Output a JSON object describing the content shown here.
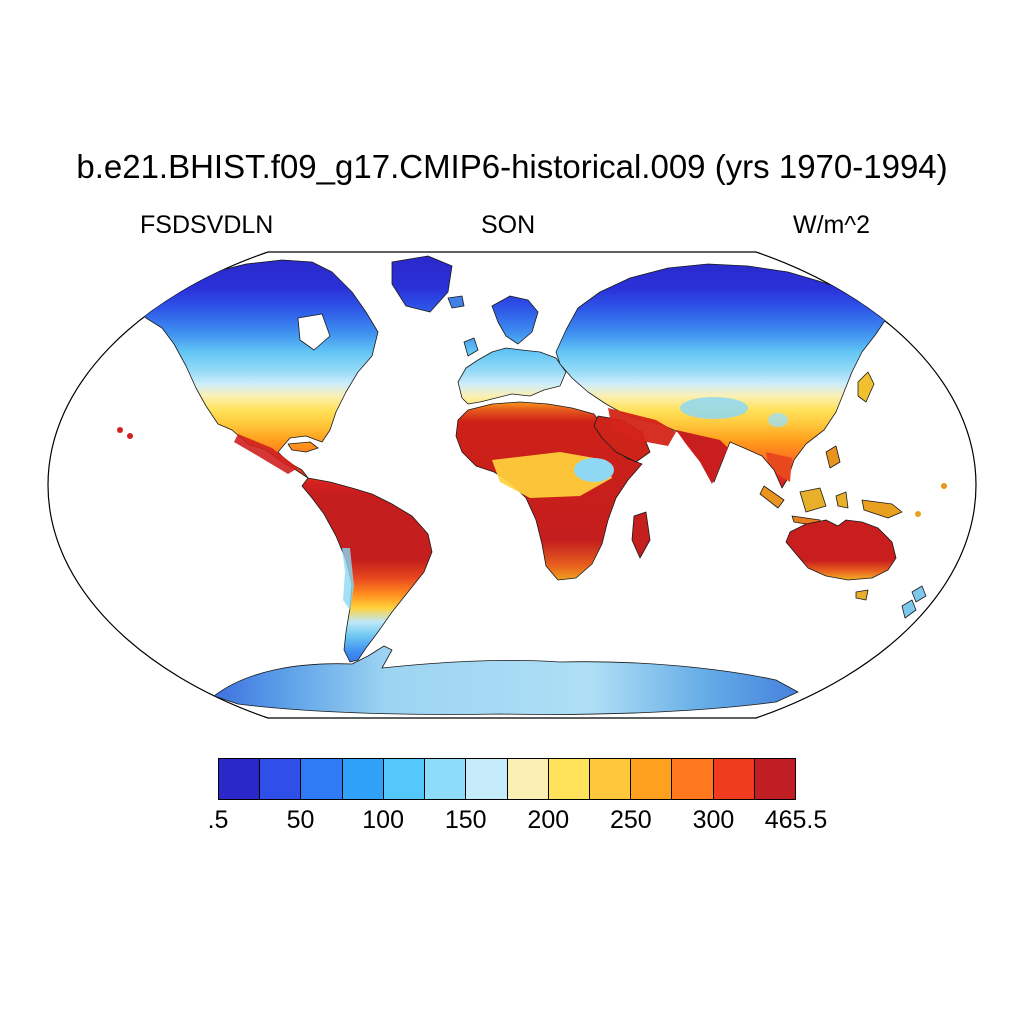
{
  "figure": {
    "title": "b.e21.BHIST.f09_g17.CMIP6-historical.009 (yrs 1970-1994)",
    "variable_label": "FSDSVDLN",
    "season_label": "SON",
    "units_label": "W/m^2",
    "background_color": "#ffffff"
  },
  "colorbar": {
    "colors": [
      "#2A28C8",
      "#2E50E8",
      "#2E7BF5",
      "#2FA1F8",
      "#54C8FA",
      "#8CDCFA",
      "#C6EBFA",
      "#FBF0B4",
      "#FFE25A",
      "#FFC83C",
      "#FFA01E",
      "#FF781E",
      "#F03C1E",
      "#C01E24"
    ],
    "tick_labels": [
      ".5",
      "50",
      "100",
      "150",
      "200",
      "250",
      "300",
      "465.5"
    ]
  },
  "chart_data": {
    "type": "heatmap",
    "title": "b.e21.BHIST.f09_g17.CMIP6-historical.009 (yrs 1970-1994)",
    "variable": "FSDSVDLN",
    "season": "SON",
    "units": "W/m^2",
    "projection": "robinson",
    "value_range": [
      0.5,
      465.5
    ],
    "labeled_levels": [
      0.5,
      50,
      100,
      150,
      200,
      250,
      300,
      465.5
    ],
    "contour_interval": 25,
    "legend_position": "bottom",
    "grid": false,
    "zonal_band_estimates_w_m2": [
      {
        "lat_band": "80N-90N",
        "value": 15
      },
      {
        "lat_band": "70N-80N",
        "value": 40
      },
      {
        "lat_band": "60N-70N",
        "value": 75
      },
      {
        "lat_band": "50N-60N",
        "value": 115
      },
      {
        "lat_band": "40N-50N",
        "value": 170
      },
      {
        "lat_band": "30N-40N",
        "value": 235
      },
      {
        "lat_band": "20N-30N",
        "value": 300
      },
      {
        "lat_band": "0-20N",
        "value": 340
      },
      {
        "lat_band": "0-20S",
        "value": 350
      },
      {
        "lat_band": "20S-30S",
        "value": 320
      },
      {
        "lat_band": "30S-40S",
        "value": 240
      },
      {
        "lat_band": "40S-50S",
        "value": 150
      },
      {
        "lat_band": "50S-60S",
        "value": 100
      },
      {
        "lat_band": "Antarctica",
        "value": 130
      }
    ],
    "region_estimates_w_m2": {
      "greenland": 25,
      "siberia": 55,
      "scandinavia": 80,
      "europe": 130,
      "central_asia": 160,
      "tibet_plateau": 140,
      "east_china": 190,
      "united_states": 210,
      "mexico": 320,
      "sahara": 345,
      "sahel_congo": 220,
      "arabia": 335,
      "india": 320,
      "amazon": 330,
      "southern_africa": 335,
      "australia": 340,
      "patagonia": 130,
      "new_zealand": 120,
      "antarctica_interior": 150,
      "antarctica_coast": 80
    }
  }
}
